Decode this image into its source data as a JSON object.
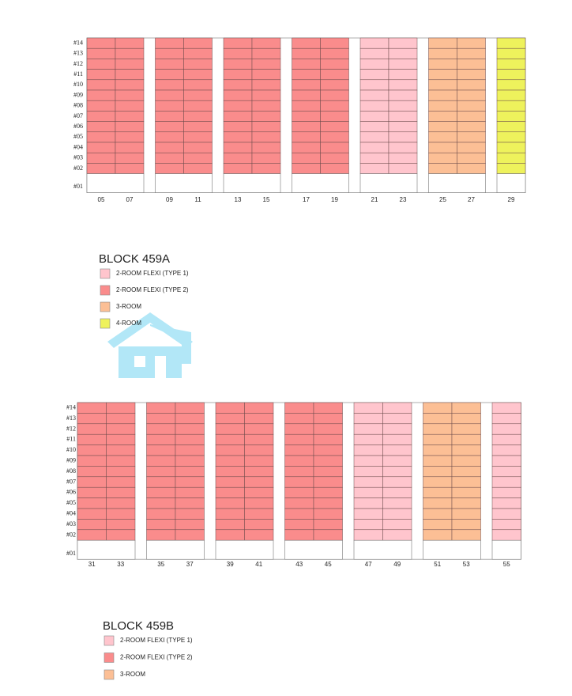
{
  "blocks": [
    {
      "title": "BLOCK 459A",
      "floors": [
        "#14",
        "#13",
        "#12",
        "#11",
        "#10",
        "#09",
        "#08",
        "#07",
        "#06",
        "#05",
        "#04",
        "#03",
        "#02",
        "#01"
      ],
      "groups": [
        {
          "units": [
            "05",
            "07"
          ],
          "color": "#fa8c8c"
        },
        {
          "units": [
            "09",
            "11"
          ],
          "color": "#fa8c8c"
        },
        {
          "units": [
            "13",
            "15"
          ],
          "color": "#fa8c8c"
        },
        {
          "units": [
            "17",
            "19"
          ],
          "color": "#fa8c8c"
        },
        {
          "units": [
            "21",
            "23"
          ],
          "color": "#ffc5cd"
        },
        {
          "units": [
            "25",
            "27"
          ],
          "color": "#fcbf95"
        },
        {
          "units": [
            "29"
          ],
          "color": "#eef25c"
        }
      ],
      "legend": [
        {
          "label": "2-ROOM FLEXI (TYPE 1)",
          "color": "#ffc5cd"
        },
        {
          "label": "2-ROOM FLEXI (TYPE 2)",
          "color": "#fa8c8c"
        },
        {
          "label": "3-ROOM",
          "color": "#fcbf95"
        },
        {
          "label": "4-ROOM",
          "color": "#eef25c"
        }
      ]
    },
    {
      "title": "BLOCK 459B",
      "floors": [
        "#14",
        "#13",
        "#12",
        "#11",
        "#10",
        "#09",
        "#08",
        "#07",
        "#06",
        "#05",
        "#04",
        "#03",
        "#02",
        "#01"
      ],
      "groups": [
        {
          "units": [
            "31",
            "33"
          ],
          "color": "#fa8c8c"
        },
        {
          "units": [
            "35",
            "37"
          ],
          "color": "#fa8c8c"
        },
        {
          "units": [
            "39",
            "41"
          ],
          "color": "#fa8c8c"
        },
        {
          "units": [
            "43",
            "45"
          ],
          "color": "#fa8c8c"
        },
        {
          "units": [
            "47",
            "49"
          ],
          "color": "#ffc5cd"
        },
        {
          "units": [
            "51",
            "53"
          ],
          "color": "#fcbf95"
        },
        {
          "units": [
            "55"
          ],
          "color": "#ffc5cd"
        }
      ],
      "legend": [
        {
          "label": "2-ROOM FLEXI (TYPE 1)",
          "color": "#ffc5cd"
        },
        {
          "label": "2-ROOM FLEXI (TYPE 2)",
          "color": "#fa8c8c"
        },
        {
          "label": "3-ROOM",
          "color": "#fcbf95"
        }
      ]
    }
  ]
}
